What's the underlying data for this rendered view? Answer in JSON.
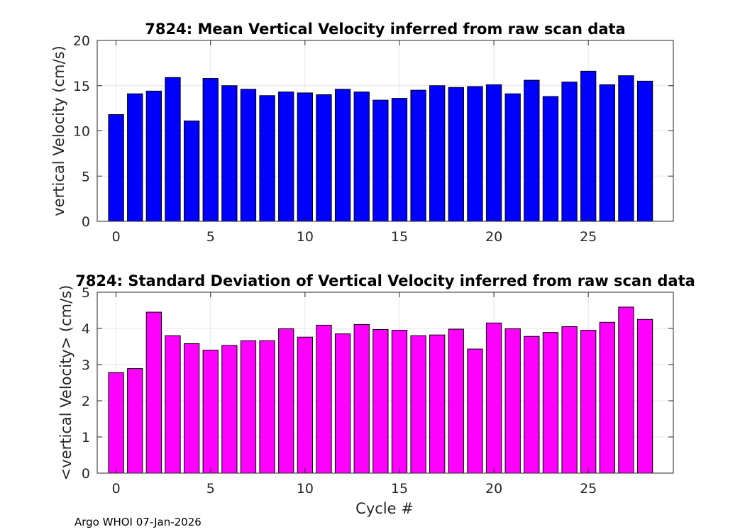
{
  "footer": "Argo WHOI 07-Jan-2026",
  "colors": {
    "top_bars": "#0000ff",
    "bottom_bars": "#ff00ff",
    "axis": "#262626",
    "grid": "#e6e6e6"
  },
  "chart_data": [
    {
      "type": "bar",
      "title": "7824: Mean Vertical Velocity inferred from raw scan data",
      "xlabel": "",
      "ylabel": "vertical Velocity (cm/s)",
      "x": [
        0,
        1,
        2,
        3,
        4,
        5,
        6,
        7,
        8,
        9,
        10,
        11,
        12,
        13,
        14,
        15,
        16,
        17,
        18,
        19,
        20,
        21,
        22,
        23,
        24,
        25,
        26,
        27,
        28
      ],
      "values": [
        11.8,
        14.1,
        14.4,
        15.9,
        11.1,
        15.8,
        15.0,
        14.6,
        13.9,
        14.3,
        14.2,
        14.0,
        14.6,
        14.3,
        13.4,
        13.6,
        14.5,
        15.0,
        14.8,
        14.9,
        15.1,
        14.1,
        15.6,
        13.8,
        15.4,
        16.6,
        15.1,
        16.1,
        15.5
      ],
      "xlim": [
        -1,
        29.5
      ],
      "ylim": [
        0,
        20
      ],
      "xticks": [
        0,
        5,
        10,
        15,
        20,
        25
      ],
      "yticks": [
        0,
        5,
        10,
        15,
        20
      ],
      "grid": true
    },
    {
      "type": "bar",
      "title": "7824: Standard Deviation of Vertical Velocity inferred from raw scan data",
      "xlabel": "Cycle #",
      "ylabel": "<vertical Velocity> (cm/s)",
      "x": [
        0,
        1,
        2,
        3,
        4,
        5,
        6,
        7,
        8,
        9,
        10,
        11,
        12,
        13,
        14,
        15,
        16,
        17,
        18,
        19,
        20,
        21,
        22,
        23,
        24,
        25,
        26,
        27,
        28
      ],
      "values": [
        2.78,
        2.89,
        4.45,
        3.8,
        3.58,
        3.4,
        3.53,
        3.66,
        3.66,
        3.99,
        3.76,
        4.09,
        3.85,
        4.11,
        3.97,
        3.95,
        3.8,
        3.82,
        3.98,
        3.43,
        4.15,
        3.99,
        3.78,
        3.89,
        4.05,
        3.95,
        4.17,
        4.59,
        4.25
      ],
      "xlim": [
        -1,
        29.5
      ],
      "ylim": [
        0,
        5
      ],
      "xticks": [
        0,
        5,
        10,
        15,
        20,
        25
      ],
      "yticks": [
        0,
        1,
        2,
        3,
        4,
        5
      ],
      "grid": true
    }
  ]
}
